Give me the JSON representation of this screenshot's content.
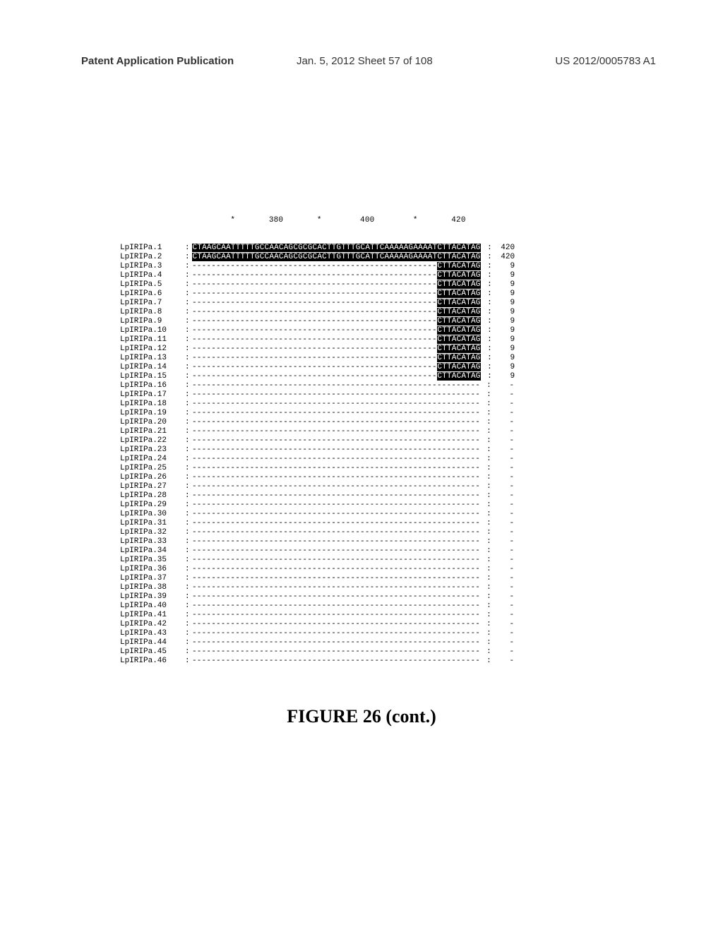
{
  "header": {
    "left": "Patent Application Publication",
    "center": "Jan. 5, 2012  Sheet 57 of 108",
    "right": "US 2012/0005783 A1"
  },
  "ruler": {
    "marks": [
      "*",
      "380",
      "*",
      "400",
      "*",
      "420"
    ]
  },
  "seq_full": "CTAAGCAATTTTTGCCAACAGCGCGCACTTGTTTGCATTCAAAAAGAAAATCTTACATAG",
  "seq_tail": "CTTACATAG",
  "dash50": "---------------------------------------------------",
  "dash60": "------------------------------------------------------------",
  "rows": [
    {
      "label": "LpIRIPa.1",
      "type": "full",
      "pos": "420"
    },
    {
      "label": "LpIRIPa.2",
      "type": "full",
      "pos": "420"
    },
    {
      "label": "LpIRIPa.3",
      "type": "tail",
      "pos": "9"
    },
    {
      "label": "LpIRIPa.4",
      "type": "tail",
      "pos": "9"
    },
    {
      "label": "LpIRIPa.5",
      "type": "tail",
      "pos": "9"
    },
    {
      "label": "LpIRIPa.6",
      "type": "tail",
      "pos": "9"
    },
    {
      "label": "LpIRIPa.7",
      "type": "tail",
      "pos": "9"
    },
    {
      "label": "LpIRIPa.8",
      "type": "tail",
      "pos": "9"
    },
    {
      "label": "LpIRIPa.9",
      "type": "tail",
      "pos": "9"
    },
    {
      "label": "LpIRIPa.10",
      "type": "tail",
      "pos": "9"
    },
    {
      "label": "LpIRIPa.11",
      "type": "tail",
      "pos": "9"
    },
    {
      "label": "LpIRIPa.12",
      "type": "tail",
      "pos": "9"
    },
    {
      "label": "LpIRIPa.13",
      "type": "tail",
      "pos": "9"
    },
    {
      "label": "LpIRIPa.14",
      "type": "tail",
      "pos": "9"
    },
    {
      "label": "LpIRIPa.15",
      "type": "tail",
      "pos": "9"
    },
    {
      "label": "LpIRIPa.16",
      "type": "gap",
      "pos": "-"
    },
    {
      "label": "LpIRIPa.17",
      "type": "gap",
      "pos": "-"
    },
    {
      "label": "LpIRIPa.18",
      "type": "gap",
      "pos": "-"
    },
    {
      "label": "LpIRIPa.19",
      "type": "gap",
      "pos": "-"
    },
    {
      "label": "LpIRIPa.20",
      "type": "gap",
      "pos": "-"
    },
    {
      "label": "LpIRIPa.21",
      "type": "gap",
      "pos": "-"
    },
    {
      "label": "LpIRIPa.22",
      "type": "gap",
      "pos": "-"
    },
    {
      "label": "LpIRIPa.23",
      "type": "gap",
      "pos": "-"
    },
    {
      "label": "LpIRIPa.24",
      "type": "gap",
      "pos": "-"
    },
    {
      "label": "LpIRIPa.25",
      "type": "gap",
      "pos": "-"
    },
    {
      "label": "LpIRIPa.26",
      "type": "gap",
      "pos": "-"
    },
    {
      "label": "LpIRIPa.27",
      "type": "gap",
      "pos": "-"
    },
    {
      "label": "LpIRIPa.28",
      "type": "gap",
      "pos": "-"
    },
    {
      "label": "LpIRIPa.29",
      "type": "gap",
      "pos": "-"
    },
    {
      "label": "LpIRIPa.30",
      "type": "gap",
      "pos": "-"
    },
    {
      "label": "LpIRIPa.31",
      "type": "gap",
      "pos": "-"
    },
    {
      "label": "LpIRIPa.32",
      "type": "gap",
      "pos": "-"
    },
    {
      "label": "LpIRIPa.33",
      "type": "gap",
      "pos": "-"
    },
    {
      "label": "LpIRIPa.34",
      "type": "gap",
      "pos": "-"
    },
    {
      "label": "LpIRIPa.35",
      "type": "gap",
      "pos": "-"
    },
    {
      "label": "LpIRIPa.36",
      "type": "gap",
      "pos": "-"
    },
    {
      "label": "LpIRIPa.37",
      "type": "gap",
      "pos": "-"
    },
    {
      "label": "LpIRIPa.38",
      "type": "gap",
      "pos": "-"
    },
    {
      "label": "LpIRIPa.39",
      "type": "gap",
      "pos": "-"
    },
    {
      "label": "LpIRIPa.40",
      "type": "gap",
      "pos": "-"
    },
    {
      "label": "LpIRIPa.41",
      "type": "gap",
      "pos": "-"
    },
    {
      "label": "LpIRIPa.42",
      "type": "gap",
      "pos": "-"
    },
    {
      "label": "LpIRIPa.43",
      "type": "gap",
      "pos": "-"
    },
    {
      "label": "LpIRIPa.44",
      "type": "gap",
      "pos": "-"
    },
    {
      "label": "LpIRIPa.45",
      "type": "gap",
      "pos": "-"
    },
    {
      "label": "LpIRIPa.46",
      "type": "gap",
      "pos": "-"
    }
  ],
  "figcaption": "FIGURE 26 (cont.)"
}
